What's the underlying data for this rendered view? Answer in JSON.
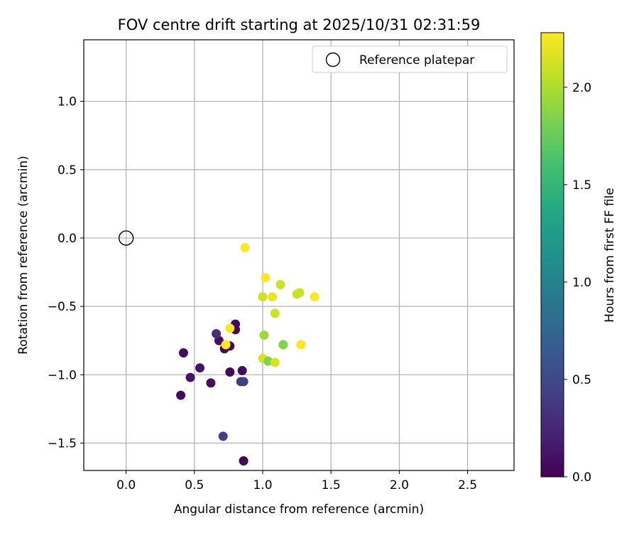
{
  "chart_data": {
    "type": "scatter",
    "title": "FOV centre drift starting at 2025/10/31 02:31:59",
    "xlabel": "Angular distance from reference (arcmin)",
    "ylabel": "Rotation from reference (arcmin)",
    "xlim": [
      -0.31,
      2.84
    ],
    "ylim": [
      -1.7,
      1.45
    ],
    "xticks": [
      0.0,
      0.5,
      1.0,
      1.5,
      2.0,
      2.5
    ],
    "xtick_labels": [
      "0.0",
      "0.5",
      "1.0",
      "1.5",
      "2.0",
      "2.5"
    ],
    "yticks": [
      1.0,
      0.5,
      0.0,
      -0.5,
      -1.0,
      -1.5
    ],
    "ytick_labels": [
      "1.0",
      "0.5",
      "0.0",
      "−0.5",
      "−1.0",
      "−1.5"
    ],
    "grid": true,
    "legend": {
      "position": "top-right",
      "entries": [
        "Reference platepar"
      ]
    },
    "reference": {
      "x": 0.0,
      "y": 0.0,
      "label": "Reference platepar"
    },
    "colorbar": {
      "label": "Hours from first FF file",
      "range": [
        0.0,
        2.28
      ],
      "ticks": [
        0.0,
        0.5,
        1.0,
        1.5,
        2.0
      ],
      "tick_labels": [
        "0.0",
        "0.5",
        "1.0",
        "1.5",
        "2.0"
      ],
      "colormap": "viridis"
    },
    "points": [
      {
        "x": 0.86,
        "y": -1.63,
        "t": 0.02
      },
      {
        "x": 0.4,
        "y": -1.15,
        "t": 0.05
      },
      {
        "x": 0.42,
        "y": -0.84,
        "t": 0.07
      },
      {
        "x": 0.47,
        "y": -1.02,
        "t": 0.12
      },
      {
        "x": 0.54,
        "y": -0.95,
        "t": 0.12
      },
      {
        "x": 0.62,
        "y": -1.06,
        "t": 0.1
      },
      {
        "x": 0.68,
        "y": -0.75,
        "t": 0.1
      },
      {
        "x": 0.72,
        "y": -0.81,
        "t": 0.05
      },
      {
        "x": 0.76,
        "y": -0.98,
        "t": 0.05
      },
      {
        "x": 0.76,
        "y": -0.79,
        "t": 0.07
      },
      {
        "x": 0.8,
        "y": -0.63,
        "t": 0.05
      },
      {
        "x": 0.8,
        "y": -0.67,
        "t": 0.05
      },
      {
        "x": 0.85,
        "y": -0.97,
        "t": 0.05
      },
      {
        "x": 0.66,
        "y": -0.7,
        "t": 0.3
      },
      {
        "x": 0.71,
        "y": -1.45,
        "t": 0.42
      },
      {
        "x": 0.84,
        "y": -1.05,
        "t": 0.4
      },
      {
        "x": 0.86,
        "y": -1.05,
        "t": 0.42
      },
      {
        "x": 0.87,
        "y": -0.07,
        "t": 2.27
      },
      {
        "x": 1.02,
        "y": -0.29,
        "t": 2.27
      },
      {
        "x": 1.13,
        "y": -0.34,
        "t": 2.1
      },
      {
        "x": 1.0,
        "y": -0.43,
        "t": 2.1
      },
      {
        "x": 1.07,
        "y": -0.43,
        "t": 2.22
      },
      {
        "x": 1.25,
        "y": -0.41,
        "t": 2.1
      },
      {
        "x": 1.27,
        "y": -0.4,
        "t": 2.1
      },
      {
        "x": 1.38,
        "y": -0.43,
        "t": 2.27
      },
      {
        "x": 1.09,
        "y": -0.55,
        "t": 2.1
      },
      {
        "x": 1.01,
        "y": -0.71,
        "t": 1.95
      },
      {
        "x": 1.15,
        "y": -0.78,
        "t": 1.85
      },
      {
        "x": 1.28,
        "y": -0.78,
        "t": 2.27
      },
      {
        "x": 1.0,
        "y": -0.88,
        "t": 2.15
      },
      {
        "x": 1.04,
        "y": -0.9,
        "t": 1.85
      },
      {
        "x": 1.09,
        "y": -0.91,
        "t": 2.15
      },
      {
        "x": 0.76,
        "y": -0.66,
        "t": 2.28
      },
      {
        "x": 0.73,
        "y": -0.78,
        "t": 2.28
      }
    ]
  }
}
